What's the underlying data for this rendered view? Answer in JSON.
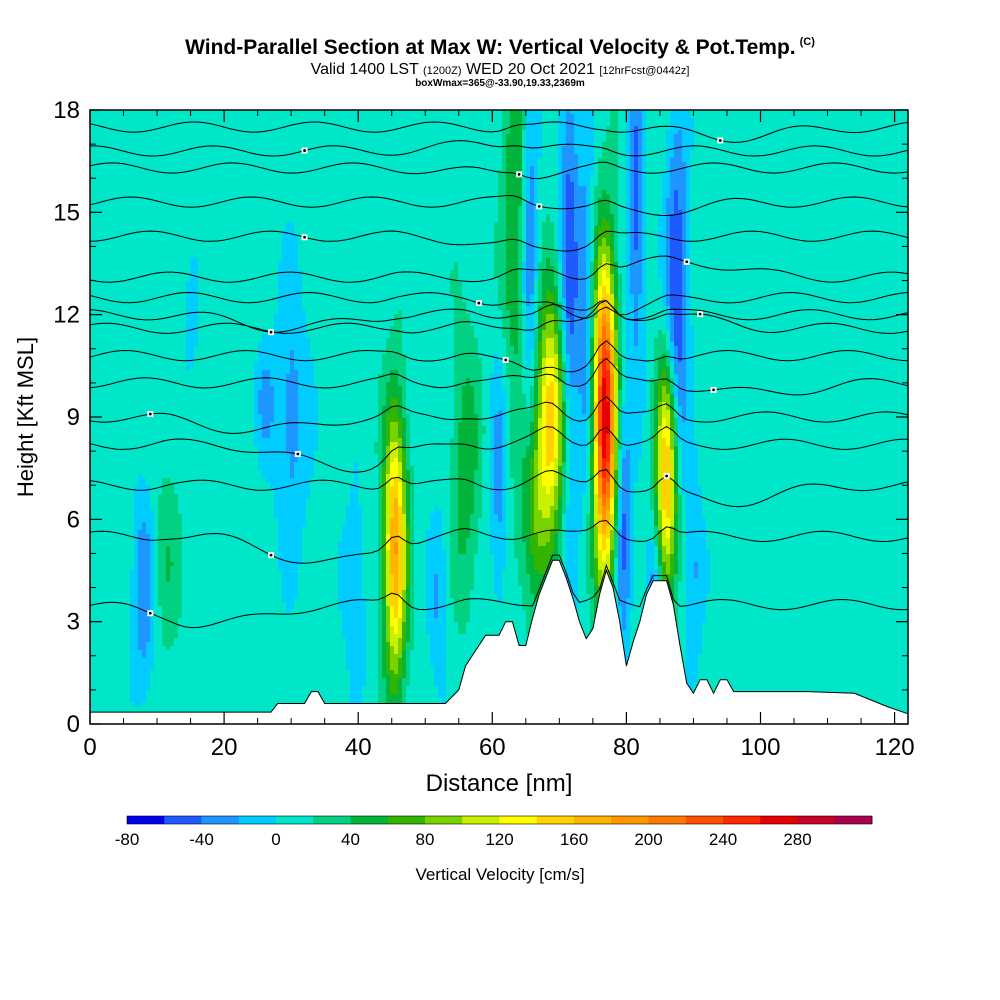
{
  "header": {
    "title": "Wind-Parallel Section at Max W: Vertical Velocity & Pot.Temp.",
    "copyright": "(C)",
    "valid_main": "Valid 1400 LST",
    "valid_utc": "(1200Z)",
    "valid_date": "WED 20 Oct 2021",
    "forecast": "[12hrFcst@0442z]",
    "subtitle": "boxWmax=365@-33.90,19.33,2369m"
  },
  "chart_data": {
    "type": "heatmap",
    "xlabel": "Distance [nm]",
    "ylabel": "Height [Kft MSL]",
    "xlim": [
      0,
      122
    ],
    "ylim": [
      0,
      18
    ],
    "xticks": [
      0,
      20,
      40,
      60,
      80,
      100,
      120
    ],
    "yticks": [
      0,
      3,
      6,
      9,
      12,
      15,
      18
    ],
    "grid": false,
    "colorbar": {
      "label": "Vertical Velocity [cm/s]",
      "tick_labels": [
        "-80",
        "-40",
        "0",
        "40",
        "80",
        "120",
        "160",
        "200",
        "240",
        "280"
      ],
      "tick_values": [
        -80,
        -40,
        0,
        40,
        80,
        120,
        160,
        200,
        240,
        280
      ],
      "min": -80,
      "step": 20,
      "colors": [
        "#0000ee",
        "#1e5aff",
        "#1e96ff",
        "#00ccff",
        "#00e6c8",
        "#00d282",
        "#00b43c",
        "#32b400",
        "#78d200",
        "#c8f000",
        "#ffff00",
        "#ffd200",
        "#ffb400",
        "#ff9600",
        "#ff7800",
        "#ff5000",
        "#ff2800",
        "#e60000",
        "#c80028",
        "#aa0050"
      ]
    },
    "background_w": 10,
    "updrafts": [
      {
        "x": 45.5,
        "y_center": 5.2,
        "x_sigma": 1.2,
        "y_sigma": 2.8,
        "peak": 170
      },
      {
        "x": 68.7,
        "y_center": 9.0,
        "x_sigma": 1.5,
        "y_sigma": 2.4,
        "peak": 150
      },
      {
        "x": 76.8,
        "y_center": 9.0,
        "x_sigma": 1.2,
        "y_sigma": 3.2,
        "peak": 270
      },
      {
        "x": 86.0,
        "y_center": 7.2,
        "x_sigma": 1.1,
        "y_sigma": 2.4,
        "peak": 160
      },
      {
        "x": 66.0,
        "y_center": 6.0,
        "x_sigma": 1.5,
        "y_sigma": 2.0,
        "peak": 60
      },
      {
        "x": 63.5,
        "y_center": 15.0,
        "x_sigma": 1.4,
        "y_sigma": 4.0,
        "peak": 55
      },
      {
        "x": 56.0,
        "y_center": 7.5,
        "x_sigma": 1.5,
        "y_sigma": 2.8,
        "peak": 45
      },
      {
        "x": 11.5,
        "y_center": 4.8,
        "x_sigma": 1.5,
        "y_sigma": 2.0,
        "peak": 25
      }
    ],
    "downdrafts": [
      {
        "x": 8.0,
        "y_center": 3.8,
        "x_sigma": 1.2,
        "y_sigma": 2.2,
        "peak": -45
      },
      {
        "x": 30.0,
        "y_center": 9.0,
        "x_sigma": 1.8,
        "y_sigma": 2.8,
        "peak": -40
      },
      {
        "x": 26.0,
        "y_center": 9.5,
        "x_sigma": 1.0,
        "y_sigma": 1.2,
        "peak": -30
      },
      {
        "x": 39.5,
        "y_center": 4.0,
        "x_sigma": 1.2,
        "y_sigma": 2.0,
        "peak": -30
      },
      {
        "x": 52.0,
        "y_center": 3.5,
        "x_sigma": 1.0,
        "y_sigma": 2.0,
        "peak": -30
      },
      {
        "x": 61.0,
        "y_center": 7.0,
        "x_sigma": 0.9,
        "y_sigma": 2.6,
        "peak": -40
      },
      {
        "x": 65.5,
        "y_center": 14.0,
        "x_sigma": 0.9,
        "y_sigma": 4.5,
        "peak": -55
      },
      {
        "x": 71.5,
        "y_center": 13.0,
        "x_sigma": 1.0,
        "y_sigma": 5.0,
        "peak": -65
      },
      {
        "x": 74.0,
        "y_center": 12.0,
        "x_sigma": 0.8,
        "y_sigma": 3.5,
        "peak": -50
      },
      {
        "x": 79.5,
        "y_center": 6.0,
        "x_sigma": 0.9,
        "y_sigma": 2.8,
        "peak": -60
      },
      {
        "x": 81.5,
        "y_center": 15.0,
        "x_sigma": 0.8,
        "y_sigma": 3.2,
        "peak": -60
      },
      {
        "x": 84.0,
        "y_center": 3.5,
        "x_sigma": 0.9,
        "y_sigma": 1.6,
        "peak": -50
      },
      {
        "x": 87.5,
        "y_center": 12.5,
        "x_sigma": 1.2,
        "y_sigma": 3.5,
        "peak": -75
      },
      {
        "x": 90.0,
        "y_center": 4.5,
        "x_sigma": 1.0,
        "y_sigma": 2.0,
        "peak": -35
      },
      {
        "x": 15.0,
        "y_center": 11.0,
        "x_sigma": 1.0,
        "y_sigma": 1.5,
        "peak": -15
      }
    ],
    "terrain": [
      [
        0,
        0.35
      ],
      [
        27,
        0.35
      ],
      [
        28,
        0.6
      ],
      [
        32,
        0.6
      ],
      [
        33,
        0.95
      ],
      [
        34,
        0.95
      ],
      [
        35,
        0.6
      ],
      [
        49,
        0.6
      ],
      [
        53,
        0.6
      ],
      [
        55,
        1.0
      ],
      [
        56,
        1.7
      ],
      [
        58,
        2.3
      ],
      [
        59,
        2.6
      ],
      [
        61,
        2.6
      ],
      [
        62,
        3.0
      ],
      [
        63,
        3.0
      ],
      [
        64,
        2.3
      ],
      [
        65,
        2.3
      ],
      [
        66,
        3.1
      ],
      [
        67,
        3.8
      ],
      [
        68,
        4.3
      ],
      [
        69,
        4.8
      ],
      [
        70,
        4.8
      ],
      [
        71,
        4.3
      ],
      [
        72,
        3.7
      ],
      [
        73,
        3.0
      ],
      [
        74,
        2.5
      ],
      [
        75,
        2.8
      ],
      [
        76,
        3.8
      ],
      [
        77,
        4.5
      ],
      [
        78,
        4.0
      ],
      [
        79,
        3.0
      ],
      [
        80,
        1.7
      ],
      [
        81,
        2.4
      ],
      [
        82,
        3.0
      ],
      [
        83,
        3.8
      ],
      [
        84,
        4.2
      ],
      [
        86,
        4.2
      ],
      [
        87,
        3.5
      ],
      [
        88,
        2.3
      ],
      [
        89,
        1.2
      ],
      [
        90,
        0.9
      ],
      [
        91,
        1.3
      ],
      [
        92,
        1.3
      ],
      [
        93,
        0.9
      ],
      [
        94,
        1.3
      ],
      [
        95,
        1.3
      ],
      [
        96,
        0.95
      ],
      [
        107,
        0.95
      ],
      [
        114,
        0.9
      ],
      [
        119,
        0.5
      ],
      [
        122,
        0.3
      ]
    ],
    "theta_contours": [
      {
        "y": 3.5,
        "label_x": 9,
        "dip_x": 18,
        "dip": -0.6
      },
      {
        "y": 5.5,
        "label_x": 27,
        "dip_x": 35,
        "dip": -0.8
      },
      {
        "y": 7.0,
        "label_x": 86,
        "dip_x": 95,
        "dip": -0.5
      },
      {
        "y": 8.2,
        "label_x": 31,
        "dip_x": 38,
        "dip": -0.7
      },
      {
        "y": 9.0,
        "label_x": 9,
        "dip_x": 25,
        "dip": -0.4
      },
      {
        "y": 10.0,
        "label_x": 93,
        "dip_x": 100,
        "dip": -0.3
      },
      {
        "y": 10.8,
        "label_x": 62,
        "dip_x": 70,
        "dip": -0.5
      },
      {
        "y": 11.6,
        "label_x": 91,
        "dip_x": 85,
        "dip": 0.4
      },
      {
        "y": 12.0,
        "label_x": 27,
        "dip_x": 30,
        "dip": -0.4
      },
      {
        "y": 12.5,
        "label_x": 58,
        "dip_x": 74,
        "dip": -0.6
      },
      {
        "y": 13.1,
        "label_x": 89,
        "dip_x": 88,
        "dip": 0.5
      },
      {
        "y": 14.3,
        "label_x": 32,
        "dip_x": 66,
        "dip": -0.4
      },
      {
        "y": 15.3,
        "label_x": 67,
        "dip_x": 82,
        "dip": -0.3
      },
      {
        "y": 16.3,
        "label_x": 64,
        "dip_x": 64,
        "dip": -0.2
      },
      {
        "y": 16.8,
        "label_x": 32,
        "dip_x": 60,
        "dip": 0.2
      },
      {
        "y": 17.5,
        "label_x": 94,
        "dip_x": 96,
        "dip": -0.3
      }
    ]
  }
}
